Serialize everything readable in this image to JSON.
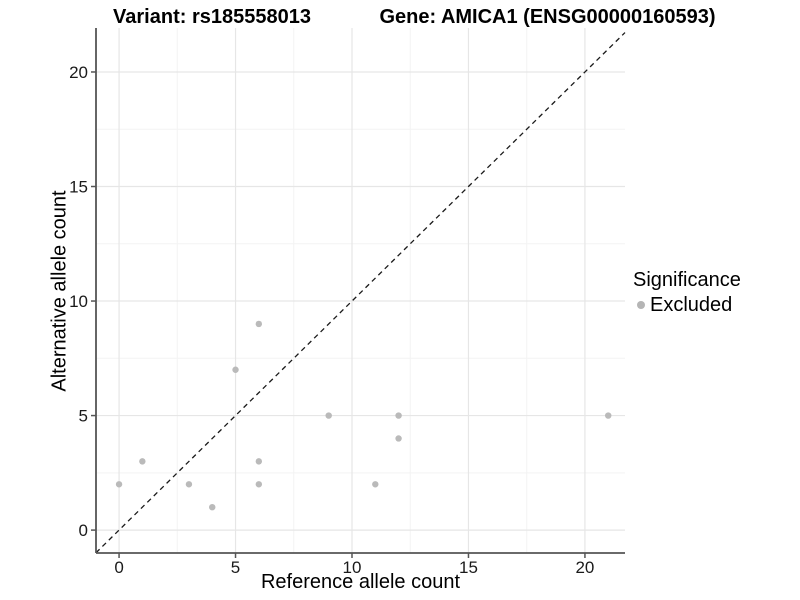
{
  "titles": {
    "variant": "Variant: rs185558013",
    "gene": "Gene: AMICA1 (ENSG00000160593)"
  },
  "legend": {
    "title": "Significance",
    "items": [
      {
        "label": "Excluded",
        "color": "#b5b5b5"
      }
    ]
  },
  "chart_data": {
    "type": "scatter",
    "title": "Variant: rs185558013 — Gene: AMICA1 (ENSG00000160593)",
    "xlabel": "Reference allele count",
    "ylabel": "Alternative allele count",
    "x_ticks": [
      0,
      5,
      10,
      15,
      20
    ],
    "y_ticks": [
      0,
      5,
      10,
      15,
      20
    ],
    "xlim": [
      -0.99,
      21.72
    ],
    "ylim": [
      -1.0,
      21.92
    ],
    "grid": {
      "major": true,
      "minor": true
    },
    "legend_position": "right",
    "identity_line": {
      "style": "dashed",
      "equation": "y = x",
      "color": "#1a1a1a"
    },
    "series": [
      {
        "name": "Excluded",
        "color": "#bababa",
        "points": [
          [
            0,
            2
          ],
          [
            1,
            3
          ],
          [
            3,
            2
          ],
          [
            4,
            1
          ],
          [
            5,
            7
          ],
          [
            6,
            2
          ],
          [
            6,
            3
          ],
          [
            6,
            9
          ],
          [
            9,
            5
          ],
          [
            11,
            2
          ],
          [
            12,
            4
          ],
          [
            12,
            5
          ],
          [
            21,
            5
          ]
        ]
      }
    ]
  },
  "style": {
    "grid_major_color": "#e6e6e6",
    "grid_minor_color": "#f3f3f3",
    "axis_color": "#555555",
    "tick_label_color": "#1a1a1a",
    "point_radius": 3.2
  }
}
